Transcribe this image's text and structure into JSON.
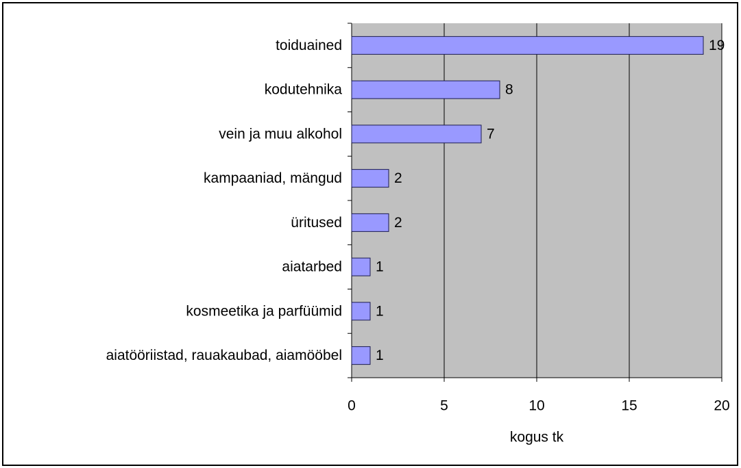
{
  "chart_data": {
    "type": "bar",
    "orientation": "horizontal",
    "categories": [
      "toiduained",
      "kodutehnika",
      "vein ja muu alkohol",
      "kampaaniad, mängud",
      "üritused",
      "aiatarbed",
      "kosmeetika ja parfüümid",
      "aiatööriistad, rauakaubad, aiamööbel"
    ],
    "values": [
      19,
      8,
      7,
      2,
      2,
      1,
      1,
      1
    ],
    "color": "#9999ff",
    "xlabel": "kogus tk",
    "xlim": [
      0,
      20
    ],
    "xticks": [
      0,
      5,
      10,
      15,
      20
    ],
    "grid": true
  }
}
